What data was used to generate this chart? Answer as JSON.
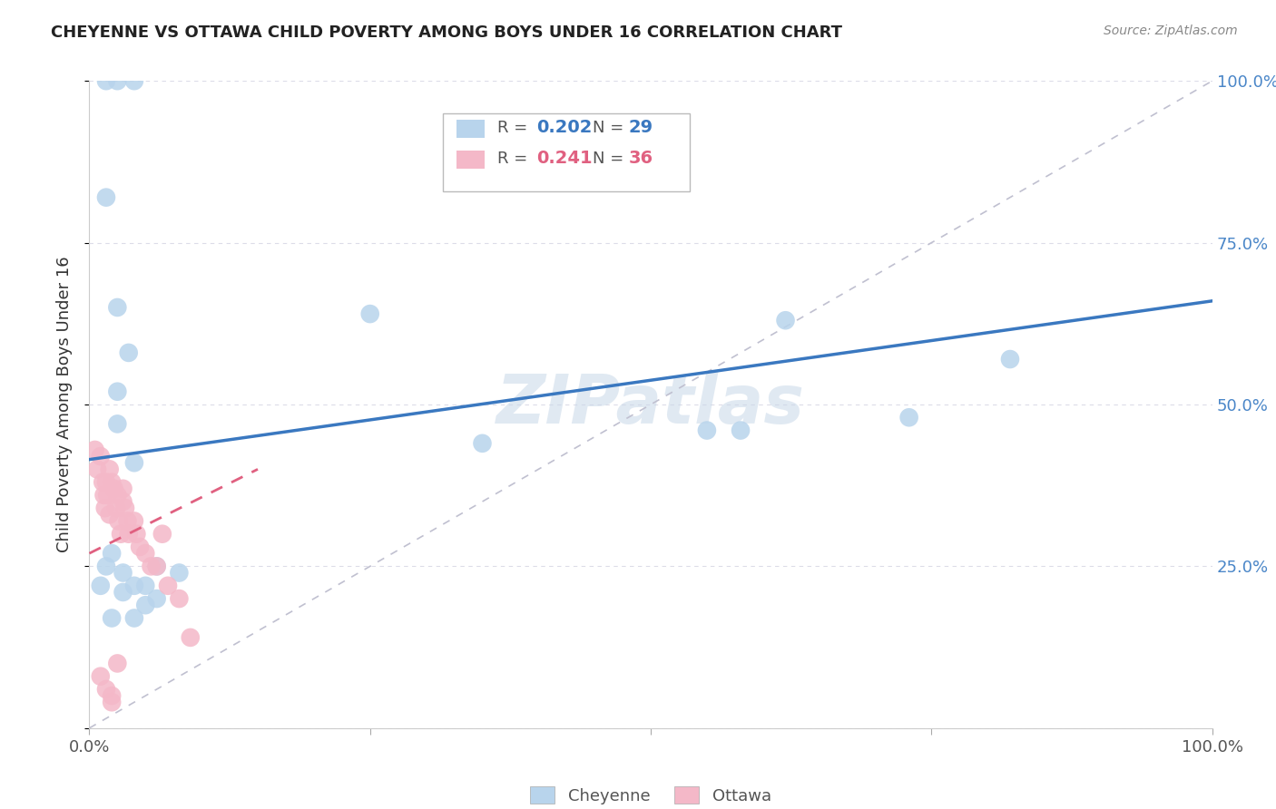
{
  "title": "CHEYENNE VS OTTAWA CHILD POVERTY AMONG BOYS UNDER 16 CORRELATION CHART",
  "source": "Source: ZipAtlas.com",
  "ylabel": "Child Poverty Among Boys Under 16",
  "cheyenne_R": 0.202,
  "cheyenne_N": 29,
  "ottawa_R": 0.241,
  "ottawa_N": 36,
  "cheyenne_color": "#b8d4ec",
  "ottawa_color": "#f4b8c8",
  "cheyenne_line_color": "#3a78c0",
  "ottawa_line_color": "#e06080",
  "diagonal_color": "#c0c0d0",
  "watermark": "ZIPatlas",
  "cheyenne_x": [
    0.015,
    0.025,
    0.04,
    0.015,
    0.025,
    0.035,
    0.025,
    0.025,
    0.25,
    0.35,
    0.55,
    0.58,
    0.62,
    0.73,
    0.82,
    0.02,
    0.03,
    0.04,
    0.05,
    0.06,
    0.04,
    0.08,
    0.06,
    0.05,
    0.04,
    0.03,
    0.02,
    0.015,
    0.01
  ],
  "cheyenne_y": [
    1.0,
    1.0,
    1.0,
    0.82,
    0.65,
    0.58,
    0.52,
    0.47,
    0.64,
    0.44,
    0.46,
    0.46,
    0.63,
    0.48,
    0.57,
    0.27,
    0.24,
    0.22,
    0.22,
    0.25,
    0.41,
    0.24,
    0.2,
    0.19,
    0.17,
    0.21,
    0.17,
    0.25,
    0.22
  ],
  "ottawa_x": [
    0.005,
    0.007,
    0.01,
    0.012,
    0.013,
    0.014,
    0.015,
    0.016,
    0.018,
    0.018,
    0.02,
    0.022,
    0.024,
    0.025,
    0.026,
    0.028,
    0.03,
    0.03,
    0.032,
    0.034,
    0.035,
    0.04,
    0.042,
    0.045,
    0.05,
    0.055,
    0.06,
    0.065,
    0.07,
    0.08,
    0.09,
    0.01,
    0.015,
    0.02,
    0.025,
    0.02
  ],
  "ottawa_y": [
    0.43,
    0.4,
    0.42,
    0.38,
    0.36,
    0.34,
    0.38,
    0.36,
    0.4,
    0.33,
    0.38,
    0.37,
    0.34,
    0.36,
    0.32,
    0.3,
    0.37,
    0.35,
    0.34,
    0.32,
    0.3,
    0.32,
    0.3,
    0.28,
    0.27,
    0.25,
    0.25,
    0.3,
    0.22,
    0.2,
    0.14,
    0.08,
    0.06,
    0.05,
    0.1,
    0.04
  ],
  "cheyenne_trend": [
    0.0,
    1.0
  ],
  "cheyenne_trend_y": [
    0.415,
    0.66
  ],
  "ottawa_trend": [
    0.0,
    0.15
  ],
  "ottawa_trend_y": [
    0.27,
    0.4
  ],
  "ytick_positions": [
    0.0,
    0.25,
    0.5,
    0.75,
    1.0
  ],
  "ytick_labels_right": [
    "",
    "25.0%",
    "50.0%",
    "75.0%",
    "100.0%"
  ],
  "xtick_positions": [
    0.0,
    0.25,
    0.5,
    0.75,
    1.0
  ],
  "xtick_labels": [
    "0.0%",
    "",
    "",
    "",
    "100.0%"
  ],
  "background_color": "#ffffff",
  "grid_color": "#dcdce8"
}
